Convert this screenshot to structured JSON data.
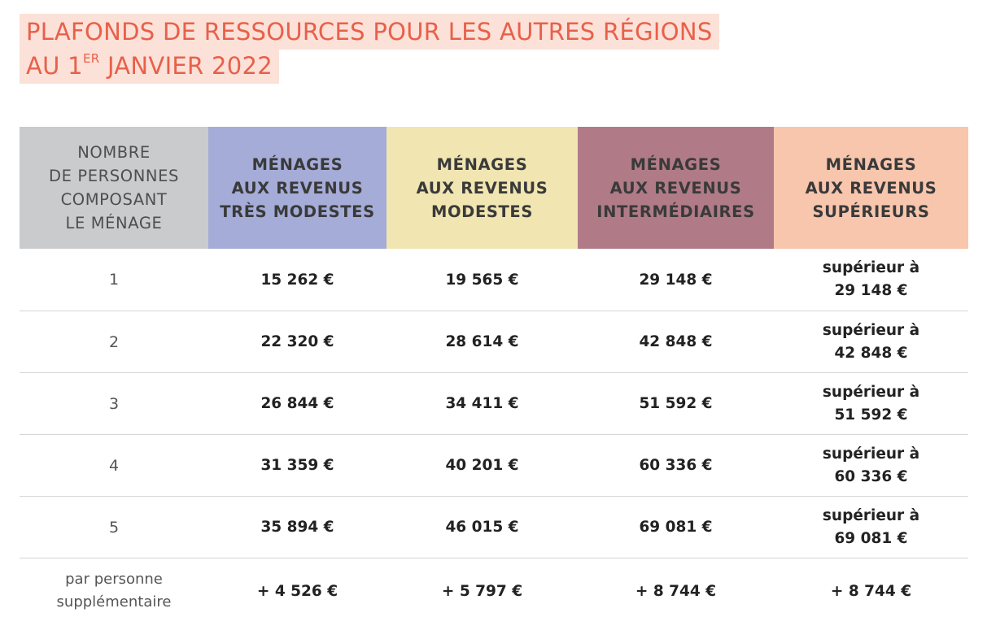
{
  "title": {
    "line1": "PLAFONDS DE RESSOURCES POUR LES AUTRES RÉGIONS",
    "line2_prefix": "AU 1",
    "line2_sup": "ER",
    "line2_suffix": " JANVIER 2022"
  },
  "table": {
    "headers": [
      {
        "lines": [
          "NOMBRE",
          "DE PERSONNES",
          "COMPOSANT",
          "LE MÉNAGE"
        ],
        "color": "#cacbcd"
      },
      {
        "lines": [
          "MÉNAGES",
          "AUX REVENUS",
          "TRÈS MODESTES"
        ],
        "color": "#a5acd8"
      },
      {
        "lines": [
          "MÉNAGES",
          "AUX REVENUS",
          "MODESTES"
        ],
        "color": "#f1e5b1"
      },
      {
        "lines": [
          "MÉNAGES",
          "AUX REVENUS",
          "INTERMÉDIAIRES"
        ],
        "color": "#b07b87"
      },
      {
        "lines": [
          "MÉNAGES",
          "AUX REVENUS",
          "SUPÉRIEURS"
        ],
        "color": "#f8c6ad"
      }
    ],
    "rows": [
      {
        "persons": "1",
        "tres_modestes": "15 262 €",
        "modestes": "19 565 €",
        "intermediaires": "29 148 €",
        "superieurs": [
          "supérieur à",
          "29 148 €"
        ]
      },
      {
        "persons": "2",
        "tres_modestes": "22 320 €",
        "modestes": "28 614 €",
        "intermediaires": "42 848 €",
        "superieurs": [
          "supérieur à",
          "42 848 €"
        ]
      },
      {
        "persons": "3",
        "tres_modestes": "26 844 €",
        "modestes": "34 411 €",
        "intermediaires": "51 592 €",
        "superieurs": [
          "supérieur à",
          "51 592 €"
        ]
      },
      {
        "persons": "4",
        "tres_modestes": "31 359 €",
        "modestes": "40 201 €",
        "intermediaires": "60 336 €",
        "superieurs": [
          "supérieur à",
          "60 336 €"
        ]
      },
      {
        "persons": "5",
        "tres_modestes": "35 894 €",
        "modestes": "46 015 €",
        "intermediaires": "69 081 €",
        "superieurs": [
          "supérieur à",
          "69 081 €"
        ]
      }
    ],
    "extra_row": {
      "persons": [
        "par personne",
        "supplémentaire"
      ],
      "tres_modestes": "+ 4 526 €",
      "modestes": "+ 5 797 €",
      "intermediaires": "+ 8 744 €",
      "superieurs": "+ 8 744 €"
    }
  }
}
